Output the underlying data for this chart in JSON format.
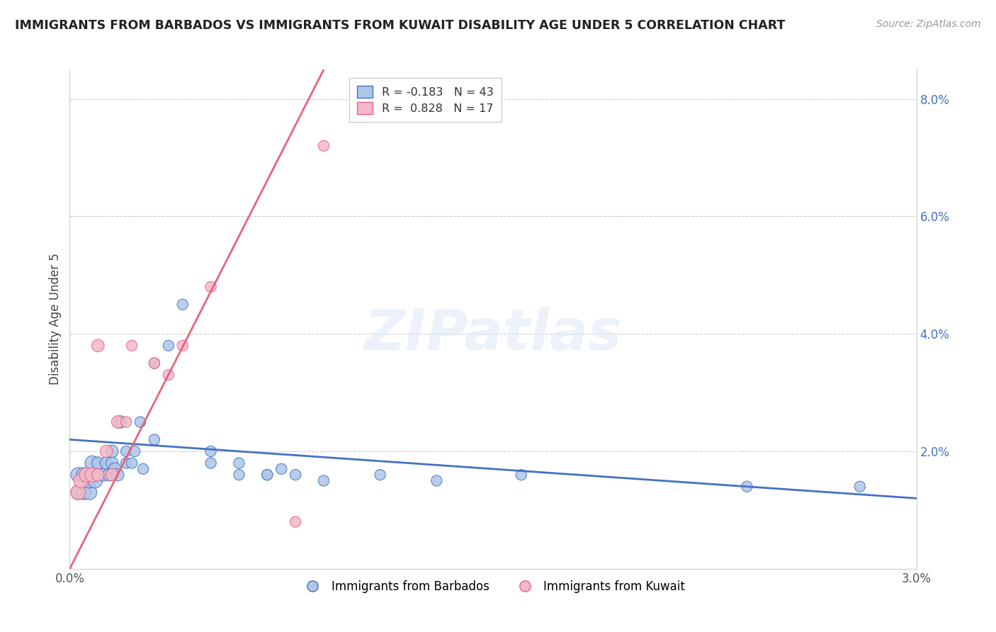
{
  "title": "IMMIGRANTS FROM BARBADOS VS IMMIGRANTS FROM KUWAIT DISABILITY AGE UNDER 5 CORRELATION CHART",
  "source": "Source: ZipAtlas.com",
  "ylabel": "Disability Age Under 5",
  "xlim": [
    0.0,
    0.03
  ],
  "ylim": [
    0.0,
    0.085
  ],
  "line1_color": "#4472c4",
  "line2_color": "#e8637d",
  "scatter_barbados_color": "#aec6e8",
  "scatter_kuwait_color": "#f4b8c8",
  "watermark_text": "ZIPatlas",
  "legend1_r": "R = -0.183",
  "legend1_n": "N = 43",
  "legend2_r": "R =  0.828",
  "legend2_n": "N = 17",
  "barbados_x": [
    0.0003,
    0.0003,
    0.0005,
    0.0005,
    0.0007,
    0.0007,
    0.0008,
    0.0008,
    0.0009,
    0.001,
    0.001,
    0.0012,
    0.0013,
    0.0014,
    0.0015,
    0.0015,
    0.0016,
    0.0017,
    0.0018,
    0.002,
    0.002,
    0.0022,
    0.0023,
    0.0025,
    0.0026,
    0.003,
    0.003,
    0.0035,
    0.004,
    0.005,
    0.005,
    0.006,
    0.006,
    0.007,
    0.007,
    0.0075,
    0.008,
    0.009,
    0.011,
    0.013,
    0.016,
    0.024,
    0.028
  ],
  "barbados_y": [
    0.013,
    0.016,
    0.013,
    0.016,
    0.013,
    0.015,
    0.016,
    0.018,
    0.015,
    0.016,
    0.018,
    0.016,
    0.018,
    0.016,
    0.018,
    0.02,
    0.017,
    0.016,
    0.025,
    0.018,
    0.02,
    0.018,
    0.02,
    0.025,
    0.017,
    0.035,
    0.022,
    0.038,
    0.045,
    0.02,
    0.018,
    0.016,
    0.018,
    0.016,
    0.016,
    0.017,
    0.016,
    0.015,
    0.016,
    0.015,
    0.016,
    0.014,
    0.014
  ],
  "kuwait_x": [
    0.0003,
    0.0004,
    0.0006,
    0.0008,
    0.001,
    0.001,
    0.0013,
    0.0015,
    0.0017,
    0.002,
    0.0022,
    0.003,
    0.0035,
    0.004,
    0.005,
    0.008,
    0.009
  ],
  "kuwait_y": [
    0.013,
    0.015,
    0.016,
    0.016,
    0.016,
    0.038,
    0.02,
    0.016,
    0.025,
    0.025,
    0.038,
    0.035,
    0.033,
    0.038,
    0.048,
    0.008,
    0.072
  ],
  "line1_x": [
    0.0,
    0.03
  ],
  "line1_y": [
    0.022,
    0.012
  ],
  "line2_x": [
    0.0,
    0.009
  ],
  "line2_y": [
    0.0,
    0.085
  ]
}
